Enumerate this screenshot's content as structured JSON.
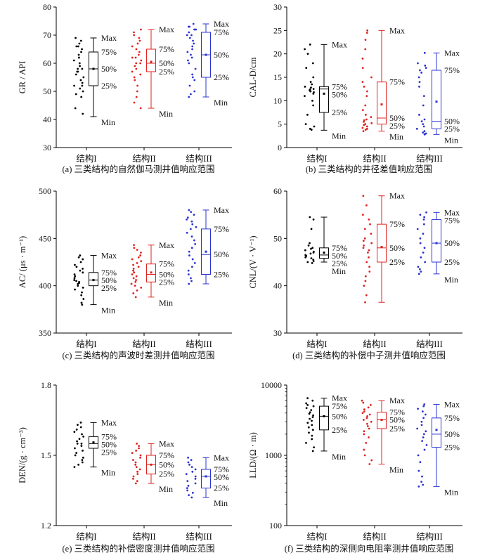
{
  "colors": {
    "s1": "#000000",
    "s2": "#e0231f",
    "s3": "#2b34d0"
  },
  "chart_data": [
    {
      "type": "box",
      "caption": "(a) 三类结构的自然伽马测井值响应范围",
      "ylabel": "GR / API",
      "ylim": [
        30,
        80
      ],
      "yscale": "linear",
      "yticks": [
        30,
        40,
        50,
        60,
        70,
        80
      ],
      "categories": [
        "结构I",
        "结构II",
        "结构III"
      ],
      "series": [
        {
          "min": 41,
          "q1": 52,
          "median": 58,
          "mean": 58,
          "q3": 64,
          "max": 69,
          "points": [
            69,
            68,
            67,
            66,
            66,
            65,
            64,
            63,
            62,
            62,
            61,
            60,
            59,
            58,
            58,
            57,
            57,
            56,
            55,
            54,
            53,
            52,
            52,
            51,
            50,
            49,
            48,
            44,
            42
          ]
        },
        {
          "min": 44,
          "q1": 57,
          "median": 60,
          "mean": 60.5,
          "q3": 65,
          "max": 72,
          "points": [
            72,
            71,
            70,
            69,
            68,
            67,
            66,
            65,
            64,
            63,
            62,
            62,
            61,
            60,
            60,
            59,
            58,
            57,
            56,
            55,
            54,
            52,
            50,
            48,
            46,
            44
          ]
        },
        {
          "min": 48,
          "q1": 55,
          "median": 63,
          "mean": 63,
          "q3": 71,
          "max": 74,
          "points": [
            74,
            73,
            73,
            72,
            72,
            71,
            70,
            70,
            69,
            68,
            67,
            66,
            65,
            64,
            63,
            62,
            61,
            60,
            58,
            56,
            55,
            54,
            52,
            50,
            49,
            48
          ]
        }
      ],
      "annotations": [
        {
          "series": 0,
          "labels": {
            "max": "Max",
            "q3": "75%",
            "median": "50%",
            "q1": "25%",
            "min": "Min"
          }
        },
        {
          "series": 1,
          "labels": {
            "max": "Max",
            "q3": "75%",
            "median": "50%",
            "q1": "25%",
            "min": "Min"
          }
        },
        {
          "series": 2,
          "labels": {
            "max": "Max",
            "q3": "75%",
            "median": "50%",
            "q1": "25%",
            "min": "Min"
          }
        }
      ]
    },
    {
      "type": "box",
      "caption": "(b) 三类结构的井径差值响应范围",
      "ylabel": "CAL-D/cm",
      "ylim": [
        0,
        30
      ],
      "yscale": "linear",
      "yticks": [
        0,
        5,
        10,
        15,
        20,
        25,
        30
      ],
      "categories": [
        "结构I",
        "结构II",
        "结构III"
      ],
      "series": [
        {
          "min": 3.7,
          "q1": 7.5,
          "median": 12.5,
          "mean": 11.5,
          "q3": 13,
          "max": 22,
          "points": [
            22,
            21,
            20,
            18,
            17,
            15,
            14,
            13.5,
            13,
            12.8,
            12.5,
            12.4,
            12.2,
            12,
            12,
            11.8,
            11.5,
            11,
            10,
            9,
            7,
            5,
            4.5,
            4,
            3.8
          ]
        },
        {
          "min": 3.5,
          "q1": 5,
          "median": 6.3,
          "mean": 9.2,
          "q3": 14,
          "max": 25,
          "points": [
            25,
            24.5,
            23,
            21,
            19,
            17,
            15,
            14,
            13,
            12,
            11,
            9,
            8,
            7,
            6.5,
            6,
            5.8,
            5.5,
            5.2,
            5,
            4.8,
            4.5,
            4.2,
            4,
            3.8,
            3.5
          ]
        },
        {
          "min": 2.8,
          "q1": 4,
          "median": 5.6,
          "mean": 9.8,
          "q3": 16.5,
          "max": 20.2,
          "points": [
            20.2,
            18,
            17.5,
            17,
            16.5,
            16,
            15,
            14,
            13,
            11,
            9,
            7,
            6,
            5.6,
            5,
            4.5,
            4,
            3.5,
            3.2,
            3,
            2.9,
            2.8
          ]
        }
      ],
      "annotations": [
        {
          "series": 0,
          "labels": {
            "max": "Max",
            "q3": "75%",
            "median": "50%",
            "q1": "25%",
            "min": "Min"
          }
        },
        {
          "series": 1,
          "labels": {
            "max": "Max",
            "q3": "75%",
            "median": "50%",
            "q1": "25%",
            "min": "Min"
          }
        },
        {
          "series": 2,
          "labels": {
            "max": "Max",
            "q3": "75%",
            "median": "50%",
            "q1": "25%",
            "min": "Min"
          }
        }
      ]
    },
    {
      "type": "box",
      "caption": "(c) 三类结构的声波时差测井值响应范围",
      "ylabel": "AC/ (μs · m⁻¹)",
      "ylim": [
        350,
        500
      ],
      "yscale": "linear",
      "yticks": [
        350,
        400,
        450,
        500
      ],
      "categories": [
        "结构I",
        "结构II",
        "结构III"
      ],
      "series": [
        {
          "min": 380,
          "q1": 400,
          "median": 406,
          "mean": 406,
          "q3": 414,
          "max": 432,
          "points": [
            432,
            430,
            428,
            425,
            422,
            420,
            418,
            416,
            414,
            412,
            410,
            408,
            406,
            405,
            404,
            403,
            402,
            400,
            398,
            396,
            393,
            390,
            386,
            382,
            380
          ]
        },
        {
          "min": 388,
          "q1": 404,
          "median": 412,
          "mean": 414,
          "q3": 423,
          "max": 443,
          "points": [
            443,
            440,
            438,
            435,
            432,
            430,
            428,
            426,
            424,
            422,
            420,
            418,
            416,
            414,
            412,
            410,
            408,
            406,
            404,
            402,
            400,
            398,
            395,
            392,
            388
          ]
        },
        {
          "min": 402,
          "q1": 412,
          "median": 433,
          "mean": 436,
          "q3": 460,
          "max": 480,
          "points": [
            480,
            478,
            475,
            472,
            470,
            468,
            465,
            462,
            460,
            456,
            452,
            448,
            444,
            440,
            436,
            432,
            428,
            424,
            420,
            416,
            412,
            408,
            405,
            402
          ]
        }
      ],
      "annotations": [
        {
          "series": 0,
          "labels": {
            "max": "Max",
            "q3": "75%",
            "median": "50%",
            "q1": "25%",
            "min": "Min"
          }
        },
        {
          "series": 1,
          "labels": {
            "max": "Max",
            "q3": "75%",
            "median": "50%",
            "q1": "25%",
            "min": "Min"
          }
        },
        {
          "series": 2,
          "labels": {
            "max": "Max",
            "q3": "75%",
            "median": "50%",
            "q1": "25%"
          }
        }
      ]
    },
    {
      "type": "box",
      "caption": "(d) 三类结构的补偿中子测井值响应范围",
      "ylabel": "CNL/(V · V⁻¹)",
      "ylim": [
        30,
        60
      ],
      "yscale": "linear",
      "yticks": [
        30,
        40,
        50,
        60
      ],
      "categories": [
        "结构I",
        "结构II",
        "结构III"
      ],
      "series": [
        {
          "min": 45,
          "q1": 45.8,
          "median": 46.5,
          "mean": 47,
          "q3": 48,
          "max": 54.5,
          "points": [
            54.5,
            54,
            52,
            49,
            48.5,
            48,
            47.8,
            47.5,
            47.2,
            47,
            46.8,
            46.5,
            46.3,
            46,
            45.8,
            45.5,
            45.2,
            45,
            44.8
          ]
        },
        {
          "min": 36.5,
          "q1": 45,
          "median": 48,
          "mean": 48.2,
          "q3": 53,
          "max": 59,
          "points": [
            59,
            57,
            55,
            54,
            53,
            52,
            51,
            50,
            49.5,
            49,
            48.5,
            48,
            47.5,
            47,
            46,
            45,
            44,
            43,
            42,
            41,
            40,
            38,
            36.5
          ]
        },
        {
          "min": 42.5,
          "q1": 45,
          "median": 49,
          "mean": 49,
          "q3": 54,
          "max": 55.5,
          "points": [
            55.5,
            55,
            54.5,
            54,
            53,
            52,
            51,
            50,
            49,
            48,
            47,
            46,
            45,
            44,
            43.5,
            43,
            42.5
          ]
        }
      ],
      "annotations": [
        {
          "series": 0,
          "labels": {
            "q3": "75%",
            "median": "50%",
            "q1": "25%",
            "min": "Min"
          }
        },
        {
          "series": 1,
          "labels": {
            "max": "Max",
            "q3": "75%",
            "median": "50%",
            "q1": "25%"
          }
        },
        {
          "series": 2,
          "labels": {
            "max": "Max",
            "q3": "75%",
            "median": "50%",
            "q1": "25%",
            "min": "Min"
          }
        }
      ]
    },
    {
      "type": "box",
      "caption": "(e) 三类结构的补偿密度测井值响应范围",
      "ylabel": "DEN/(g · cm⁻³)",
      "ylim": [
        1.2,
        1.8
      ],
      "yscale": "linear",
      "yticks": [
        1.2,
        1.5,
        1.8
      ],
      "categories": [
        "结构I",
        "结构II",
        "结构III"
      ],
      "series": [
        {
          "min": 1.45,
          "q1": 1.53,
          "median": 1.55,
          "mean": 1.555,
          "q3": 1.58,
          "max": 1.64,
          "points": [
            1.64,
            1.63,
            1.62,
            1.61,
            1.6,
            1.59,
            1.58,
            1.57,
            1.56,
            1.55,
            1.55,
            1.54,
            1.53,
            1.52,
            1.51,
            1.5,
            1.49,
            1.48,
            1.47,
            1.46,
            1.45
          ]
        },
        {
          "min": 1.38,
          "q1": 1.42,
          "median": 1.46,
          "mean": 1.46,
          "q3": 1.5,
          "max": 1.55,
          "points": [
            1.55,
            1.54,
            1.53,
            1.52,
            1.51,
            1.5,
            1.49,
            1.48,
            1.47,
            1.46,
            1.45,
            1.44,
            1.43,
            1.42,
            1.41,
            1.4,
            1.39,
            1.38
          ]
        },
        {
          "min": 1.32,
          "q1": 1.36,
          "median": 1.41,
          "mean": 1.41,
          "q3": 1.44,
          "max": 1.49,
          "points": [
            1.49,
            1.48,
            1.47,
            1.46,
            1.45,
            1.44,
            1.43,
            1.42,
            1.41,
            1.4,
            1.39,
            1.38,
            1.37,
            1.36,
            1.35,
            1.34,
            1.33,
            1.32
          ]
        }
      ],
      "annotations": [
        {
          "series": 0,
          "labels": {
            "max": "Max",
            "q3": "75%",
            "median": "50%",
            "q1": "25%",
            "min": "Min"
          }
        },
        {
          "series": 1,
          "labels": {
            "max": "Max",
            "q3": "75%",
            "median": "50%",
            "q1": "25%",
            "min": "Min"
          }
        },
        {
          "series": 2,
          "labels": {
            "max": "Max",
            "q3": "75%",
            "median": "50%",
            "q1": "25%",
            "min": "Min"
          }
        }
      ]
    },
    {
      "type": "box",
      "caption": "(f) 三类结构的深侧向电阻率测井值响应范围",
      "ylabel": "LLD/(Ω · m)",
      "ylim": [
        100,
        10000
      ],
      "yscale": "log",
      "yticks": [
        100,
        1000,
        10000
      ],
      "categories": [
        "结构I",
        "结构II",
        "结构III"
      ],
      "series": [
        {
          "min": 1150,
          "q1": 2300,
          "median": 3600,
          "mean": 3600,
          "q3": 5000,
          "max": 6500,
          "points": [
            6500,
            6000,
            5500,
            5200,
            5000,
            4700,
            4400,
            4100,
            3900,
            3700,
            3500,
            3300,
            3100,
            2900,
            2700,
            2500,
            2300,
            2100,
            1900,
            1700,
            1500,
            1300,
            1150
          ]
        },
        {
          "min": 750,
          "q1": 2400,
          "median": 3200,
          "mean": 3200,
          "q3": 4100,
          "max": 6000,
          "points": [
            6000,
            5600,
            5200,
            4800,
            4500,
            4200,
            4000,
            3800,
            3600,
            3400,
            3200,
            3000,
            2800,
            2600,
            2400,
            2200,
            2000,
            1800,
            1500,
            1200,
            1000,
            850,
            750
          ]
        },
        {
          "min": 360,
          "q1": 1300,
          "median": 2000,
          "mean": 2300,
          "q3": 3400,
          "max": 5300,
          "points": [
            5300,
            5000,
            4600,
            4200,
            3800,
            3400,
            3000,
            2700,
            2400,
            2200,
            2000,
            1800,
            1600,
            1400,
            1200,
            1000,
            800,
            600,
            500,
            420,
            380,
            360
          ]
        }
      ],
      "annotations": [
        {
          "series": 0,
          "labels": {
            "max": "Max",
            "q3": "75%",
            "median": "50%",
            "q1": "25%",
            "min": "Min"
          }
        },
        {
          "series": 1,
          "labels": {
            "max": "Max",
            "q3": "75%",
            "median": "50%",
            "q1": "25%",
            "min": "Min"
          }
        },
        {
          "series": 2,
          "labels": {
            "max": "Max",
            "q3": "75%",
            "median": "50%",
            "q1": "25%",
            "min": "Min"
          }
        }
      ]
    }
  ]
}
